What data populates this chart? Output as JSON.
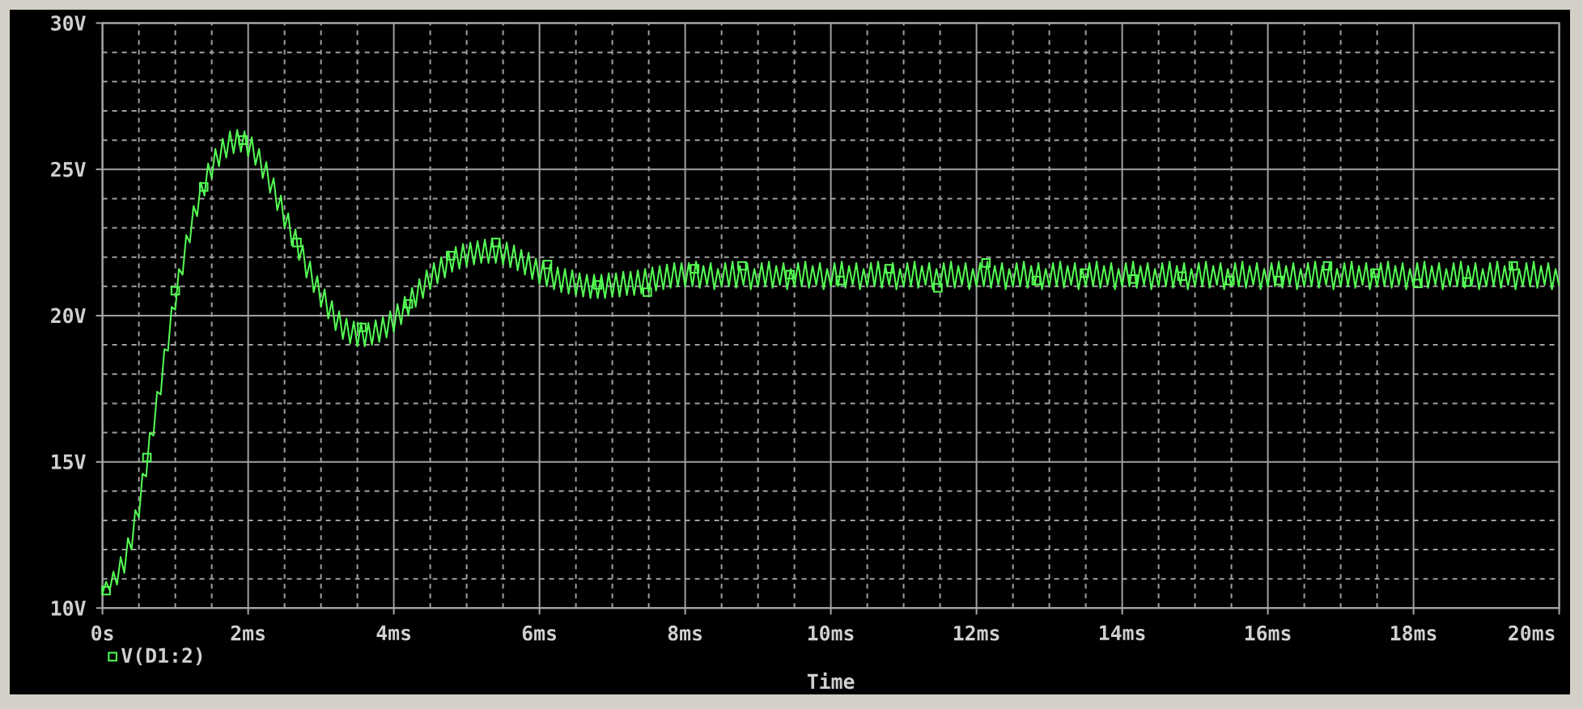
{
  "chart_data": {
    "type": "line",
    "xlabel": "Time",
    "x": [
      0,
      0.05,
      0.1,
      0.15,
      0.2,
      0.25,
      0.3,
      0.35,
      0.4,
      0.45,
      0.5,
      0.55,
      0.6,
      0.65,
      0.7,
      0.75,
      0.8,
      0.85,
      0.9,
      0.95,
      1,
      1.05,
      1.1,
      1.15,
      1.2,
      1.25,
      1.3,
      1.35,
      1.4,
      1.45,
      1.5,
      1.55,
      1.6,
      1.65,
      1.7,
      1.75,
      1.8,
      1.85,
      1.9,
      1.95,
      2,
      2.05,
      2.1,
      2.15,
      2.2,
      2.25,
      2.3,
      2.35,
      2.4,
      2.45,
      2.5,
      2.55,
      2.6,
      2.65,
      2.7,
      2.75,
      2.8,
      2.85,
      2.9,
      2.95,
      3,
      3.05,
      3.1,
      3.15,
      3.2,
      3.25,
      3.3,
      3.35,
      3.4,
      3.45,
      3.5,
      3.55,
      3.6,
      3.65,
      3.7,
      3.75,
      3.8,
      3.85,
      3.9,
      3.95,
      4,
      4.05,
      4.1,
      4.15,
      4.2,
      4.25,
      4.3,
      4.35,
      4.4,
      4.45,
      4.5,
      4.55,
      4.6,
      4.65,
      4.7,
      4.75,
      4.8,
      4.85,
      4.9,
      4.95,
      5,
      5.05,
      5.1,
      5.15,
      5.2,
      5.25,
      5.3,
      5.35,
      5.4,
      5.45,
      5.5,
      5.55,
      5.6,
      5.65,
      5.7,
      5.75,
      5.8,
      5.85,
      5.9,
      5.95,
      6,
      6.05,
      6.1,
      6.15,
      6.2,
      6.25,
      6.3,
      6.35,
      6.4,
      6.45,
      6.5,
      6.55,
      6.6,
      6.65,
      6.7,
      6.75,
      6.8,
      6.85,
      6.9,
      6.95,
      7,
      7.05,
      7.1,
      7.15,
      7.2,
      7.25,
      7.3,
      7.35,
      7.4,
      7.45,
      7.5,
      7.55,
      7.6,
      7.65,
      7.7,
      7.75,
      7.8,
      7.85,
      7.9,
      7.95,
      8,
      8.05,
      8.1,
      8.15,
      8.2,
      8.25,
      8.3,
      8.35,
      8.4,
      8.45,
      8.5,
      8.55,
      8.6,
      8.65,
      8.7,
      8.75,
      8.8,
      8.85,
      8.9,
      8.95,
      9,
      9.05,
      9.1,
      9.15,
      9.2,
      9.25,
      9.3,
      9.35,
      9.4,
      9.45,
      9.5,
      9.55,
      9.6,
      9.65,
      9.7,
      9.75,
      9.8,
      9.85,
      9.9,
      9.95,
      10,
      10.05,
      10.1,
      10.15,
      10.2,
      10.25,
      10.3,
      10.35,
      10.4,
      10.45,
      10.5,
      10.55,
      10.6,
      10.65,
      10.7,
      10.75,
      10.8,
      10.85,
      10.9,
      10.95,
      11,
      11.05,
      11.1,
      11.15,
      11.2,
      11.25,
      11.3,
      11.35,
      11.4,
      11.45,
      11.5,
      11.55,
      11.6,
      11.65,
      11.7,
      11.75,
      11.8,
      11.85,
      11.9,
      11.95,
      12,
      12.05,
      12.1,
      12.15,
      12.2,
      12.25,
      12.3,
      12.35,
      12.4,
      12.45,
      12.5,
      12.55,
      12.6,
      12.65,
      12.7,
      12.75,
      12.8,
      12.85,
      12.9,
      12.95,
      13,
      13.05,
      13.1,
      13.15,
      13.2,
      13.25,
      13.3,
      13.35,
      13.4,
      13.45,
      13.5,
      13.55,
      13.6,
      13.65,
      13.7,
      13.75,
      13.8,
      13.85,
      13.9,
      13.95,
      14,
      14.05,
      14.1,
      14.15,
      14.2,
      14.25,
      14.3,
      14.35,
      14.4,
      14.45,
      14.5,
      14.55,
      14.6,
      14.65,
      14.7,
      14.75,
      14.8,
      14.85,
      14.9,
      14.95,
      15,
      15.05,
      15.1,
      15.15,
      15.2,
      15.25,
      15.3,
      15.35,
      15.4,
      15.45,
      15.5,
      15.55,
      15.6,
      15.65,
      15.7,
      15.75,
      15.8,
      15.85,
      15.9,
      15.95,
      16,
      16.05,
      16.1,
      16.15,
      16.2,
      16.25,
      16.3,
      16.35,
      16.4,
      16.45,
      16.5,
      16.55,
      16.6,
      16.65,
      16.7,
      16.75,
      16.8,
      16.85,
      16.9,
      16.95,
      17,
      17.05,
      17.1,
      17.15,
      17.2,
      17.25,
      17.3,
      17.35,
      17.4,
      17.45,
      17.5,
      17.55,
      17.6,
      17.65,
      17.7,
      17.75,
      17.8,
      17.85,
      17.9,
      17.95,
      18,
      18.05,
      18.1,
      18.15,
      18.2,
      18.25,
      18.3,
      18.35,
      18.4,
      18.45,
      18.5,
      18.55,
      18.6,
      18.65,
      18.7,
      18.75,
      18.8,
      18.85,
      18.9,
      18.95,
      19,
      19.05,
      19.1,
      19.15,
      19.2,
      19.25,
      19.3,
      19.35,
      19.4,
      19.45,
      19.5,
      19.55,
      19.6,
      19.65,
      19.7,
      19.75,
      19.8,
      19.85,
      19.9,
      19.95,
      20
    ],
    "series": [
      {
        "name": "V(D1:2)",
        "color": "#55ff55",
        "values": [
          10.5,
          10.9,
          10.6,
          11.25,
          10.8,
          11.75,
          11.2,
          12.4,
          12.0,
          13.35,
          13.1,
          14.6,
          14.5,
          16.0,
          15.9,
          17.4,
          17.3,
          18.85,
          18.8,
          20.3,
          20.2,
          21.6,
          21.4,
          22.75,
          22.5,
          23.75,
          23.4,
          24.55,
          24.1,
          25.2,
          24.7,
          25.7,
          25.1,
          26.05,
          25.4,
          26.3,
          25.55,
          26.35,
          25.6,
          26.3,
          25.45,
          26.1,
          25.15,
          25.7,
          24.7,
          25.25,
          24.2,
          24.7,
          23.6,
          24.1,
          23.0,
          23.5,
          22.4,
          22.95,
          21.9,
          22.4,
          21.3,
          21.85,
          20.8,
          21.35,
          20.3,
          20.9,
          19.9,
          20.5,
          19.5,
          20.15,
          19.2,
          19.9,
          19.05,
          19.8,
          18.95,
          19.75,
          18.95,
          19.75,
          19.0,
          19.85,
          19.1,
          19.95,
          19.25,
          20.15,
          19.45,
          20.4,
          19.7,
          20.65,
          20.0,
          20.95,
          20.3,
          21.25,
          20.6,
          21.55,
          20.9,
          21.8,
          21.1,
          22.0,
          21.3,
          22.2,
          21.5,
          22.35,
          21.6,
          22.45,
          21.7,
          22.5,
          21.75,
          22.55,
          21.8,
          22.6,
          21.8,
          22.6,
          21.8,
          22.55,
          21.75,
          22.5,
          21.65,
          22.4,
          21.55,
          22.25,
          21.4,
          22.15,
          21.25,
          21.95,
          21.1,
          21.85,
          21.0,
          21.75,
          20.9,
          21.65,
          20.8,
          21.6,
          20.75,
          21.55,
          20.7,
          21.45,
          20.65,
          21.4,
          20.6,
          21.4,
          20.6,
          21.4,
          20.6,
          21.45,
          20.65,
          21.45,
          20.65,
          21.5,
          20.7,
          21.5,
          20.7,
          21.55,
          20.75,
          21.6,
          20.8,
          21.65,
          20.85,
          21.7,
          20.9,
          21.75,
          20.95,
          21.8,
          21.0,
          21.8,
          21.0,
          21.8,
          21.0,
          21.85,
          20.95,
          21.7,
          21.05,
          21.8,
          20.9,
          21.6,
          21.0,
          21.8,
          21.0,
          21.85,
          20.95,
          21.7,
          21.05,
          21.8,
          20.9,
          21.6,
          21.0,
          21.8,
          21.0,
          21.85,
          20.95,
          21.7,
          21.05,
          21.8,
          20.9,
          21.6,
          21.0,
          21.8,
          21.0,
          21.85,
          20.95,
          21.7,
          21.05,
          21.8,
          20.9,
          21.6,
          21.0,
          21.8,
          21.0,
          21.85,
          20.95,
          21.7,
          21.05,
          21.8,
          20.9,
          21.6,
          21.0,
          21.8,
          21.0,
          21.85,
          20.95,
          21.7,
          21.05,
          21.8,
          20.9,
          21.6,
          21.0,
          21.8,
          21.0,
          21.85,
          20.95,
          21.7,
          21.05,
          21.8,
          20.9,
          21.6,
          21.0,
          21.8,
          21.0,
          21.85,
          20.95,
          21.7,
          21.05,
          21.8,
          20.9,
          21.6,
          21.0,
          21.8,
          21.0,
          21.85,
          20.95,
          21.7,
          21.05,
          21.8,
          20.9,
          21.6,
          21.0,
          21.8,
          21.0,
          21.85,
          20.95,
          21.7,
          21.05,
          21.8,
          20.9,
          21.6,
          21.0,
          21.8,
          21.0,
          21.85,
          20.95,
          21.7,
          21.05,
          21.8,
          20.9,
          21.6,
          21.0,
          21.8,
          21.0,
          21.85,
          20.95,
          21.7,
          21.05,
          21.8,
          20.9,
          21.6,
          21.0,
          21.8,
          21.0,
          21.85,
          20.95,
          21.7,
          21.05,
          21.8,
          20.9,
          21.6,
          21.0,
          21.8,
          21.0,
          21.85,
          20.95,
          21.7,
          21.05,
          21.8,
          20.9,
          21.6,
          21.0,
          21.8,
          21.0,
          21.85,
          20.95,
          21.7,
          21.05,
          21.8,
          20.9,
          21.6,
          21.0,
          21.8,
          21.0,
          21.85,
          20.95,
          21.7,
          21.05,
          21.8,
          20.9,
          21.6,
          21.0,
          21.8,
          21.0,
          21.85,
          20.95,
          21.7,
          21.05,
          21.8,
          20.9,
          21.6,
          21.0,
          21.8,
          21.0,
          21.85,
          20.95,
          21.7,
          21.05,
          21.8,
          20.9,
          21.6,
          21.0,
          21.8,
          21.0,
          21.85,
          20.95,
          21.7,
          21.05,
          21.8,
          20.9,
          21.6,
          21.0,
          21.8,
          21.0,
          21.85,
          20.95,
          21.7,
          21.05,
          21.8,
          20.9,
          21.6,
          21.0,
          21.8,
          21.0,
          21.85,
          20.95,
          21.7,
          21.05,
          21.8,
          20.9,
          21.6,
          21.0,
          21.8,
          21.0,
          21.85,
          20.95,
          21.7,
          21.05,
          21.8,
          20.9,
          21.6,
          21.0,
          21.8,
          21.0,
          21.85,
          20.95,
          21.7,
          21.05,
          21.8,
          20.9,
          21.6,
          21.0,
          21.8,
          21.0,
          21.85,
          20.95,
          21.7,
          21.05,
          21.8,
          20.9,
          21.6,
          21.0
        ]
      },
      {
        "type": "scatter",
        "color": "#55ff55",
        "marker": "square",
        "x": [
          0.05,
          0.61,
          1.0,
          1.39,
          1.93,
          2.67,
          3.56,
          4.2,
          4.78,
          5.4,
          6.11,
          6.8,
          7.48,
          8.13,
          8.78,
          9.44,
          10.13,
          10.8,
          11.47,
          12.13,
          12.82,
          13.48,
          14.15,
          14.82,
          15.48,
          16.15,
          16.82,
          17.47,
          18.06,
          18.73,
          19.37
        ],
        "values": [
          10.6,
          15.15,
          20.85,
          24.4,
          26.0,
          22.5,
          19.6,
          20.4,
          22.05,
          22.5,
          21.75,
          21.05,
          20.8,
          21.6,
          21.7,
          21.4,
          21.2,
          21.6,
          20.95,
          21.8,
          21.2,
          21.45,
          21.25,
          21.35,
          21.2,
          21.2,
          21.7,
          21.45,
          21.1,
          21.15,
          21.7
        ]
      }
    ],
    "xlim": [
      0,
      20
    ],
    "xticks": [
      {
        "value": 0,
        "label": "0s"
      },
      {
        "value": 2,
        "label": "2ms"
      },
      {
        "value": 4,
        "label": "4ms"
      },
      {
        "value": 6,
        "label": "6ms"
      },
      {
        "value": 8,
        "label": "8ms"
      },
      {
        "value": 10,
        "label": "10ms"
      },
      {
        "value": 12,
        "label": "12ms"
      },
      {
        "value": 14,
        "label": "14ms"
      },
      {
        "value": 16,
        "label": "16ms"
      },
      {
        "value": 18,
        "label": "18ms"
      },
      {
        "value": 20,
        "label": "20ms"
      }
    ],
    "ylim": [
      10,
      30
    ],
    "yticks": [
      {
        "value": 10,
        "label": "10V"
      },
      {
        "value": 15,
        "label": "15V"
      },
      {
        "value": 20,
        "label": "20V"
      },
      {
        "value": 25,
        "label": "25V"
      },
      {
        "value": 30,
        "label": "30V"
      }
    ],
    "grid": true,
    "legend": "bottom left",
    "line_style": "solid"
  }
}
